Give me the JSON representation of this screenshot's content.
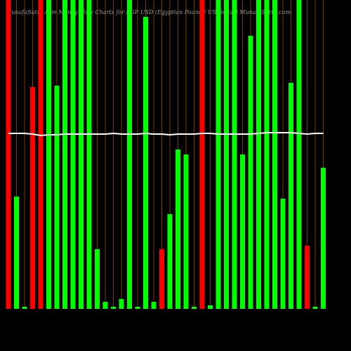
{
  "chart_data": {
    "type": "bar",
    "title": "MunafaSutra.com Money Flow Charts for EGP USD (Egyptian Pound / US Dollar) MunafaSutra.com",
    "categories": [
      null,
      null,
      null,
      null,
      null,
      null,
      null,
      null,
      null,
      null,
      null,
      null,
      null,
      null,
      null,
      null,
      null,
      null,
      null,
      null,
      null,
      null,
      null,
      null,
      null,
      null,
      null,
      null,
      null,
      null,
      null,
      null,
      null,
      null,
      null,
      null,
      null,
      null,
      null,
      null
    ],
    "values": [
      440,
      160,
      3,
      316,
      440,
      440,
      318,
      440,
      440,
      440,
      440,
      85,
      10,
      3,
      14,
      440,
      3,
      416,
      10,
      85,
      135,
      227,
      220,
      3,
      440,
      5,
      440,
      440,
      440,
      220,
      389,
      440,
      440,
      440,
      157,
      322,
      440,
      90,
      3,
      201
    ],
    "colors": [
      "#ff0000",
      "#00ff00",
      "#00ff00",
      "#ff0000",
      "#ff0000",
      "#00ff00",
      "#00ff00",
      "#00ff00",
      "#00ff00",
      "#00ff00",
      "#00ff00",
      "#00ff00",
      "#00ff00",
      "#00ff00",
      "#00ff00",
      "#00ff00",
      "#00ff00",
      "#00ff00",
      "#00ff00",
      "#ff0000",
      "#00ff00",
      "#00ff00",
      "#00ff00",
      "#00ff00",
      "#ff0000",
      "#00ff00",
      "#00ff00",
      "#00ff00",
      "#00ff00",
      "#00ff00",
      "#00ff00",
      "#00ff00",
      "#00ff00",
      "#00ff00",
      "#00ff00",
      "#00ff00",
      "#00ff00",
      "#ff0000",
      "#00ff00",
      "#00ff00"
    ],
    "line": {
      "color": "#ffffff",
      "values": [
        250,
        250,
        250,
        249,
        247,
        248,
        248,
        249,
        249,
        249,
        249,
        249,
        249,
        250,
        249,
        249,
        249,
        250,
        249,
        249,
        248,
        249,
        249,
        249,
        250,
        250,
        249,
        249,
        249,
        249,
        249,
        250,
        251,
        251,
        251,
        251,
        250,
        249,
        250,
        250
      ]
    },
    "ylim": [
      0,
      440
    ]
  }
}
